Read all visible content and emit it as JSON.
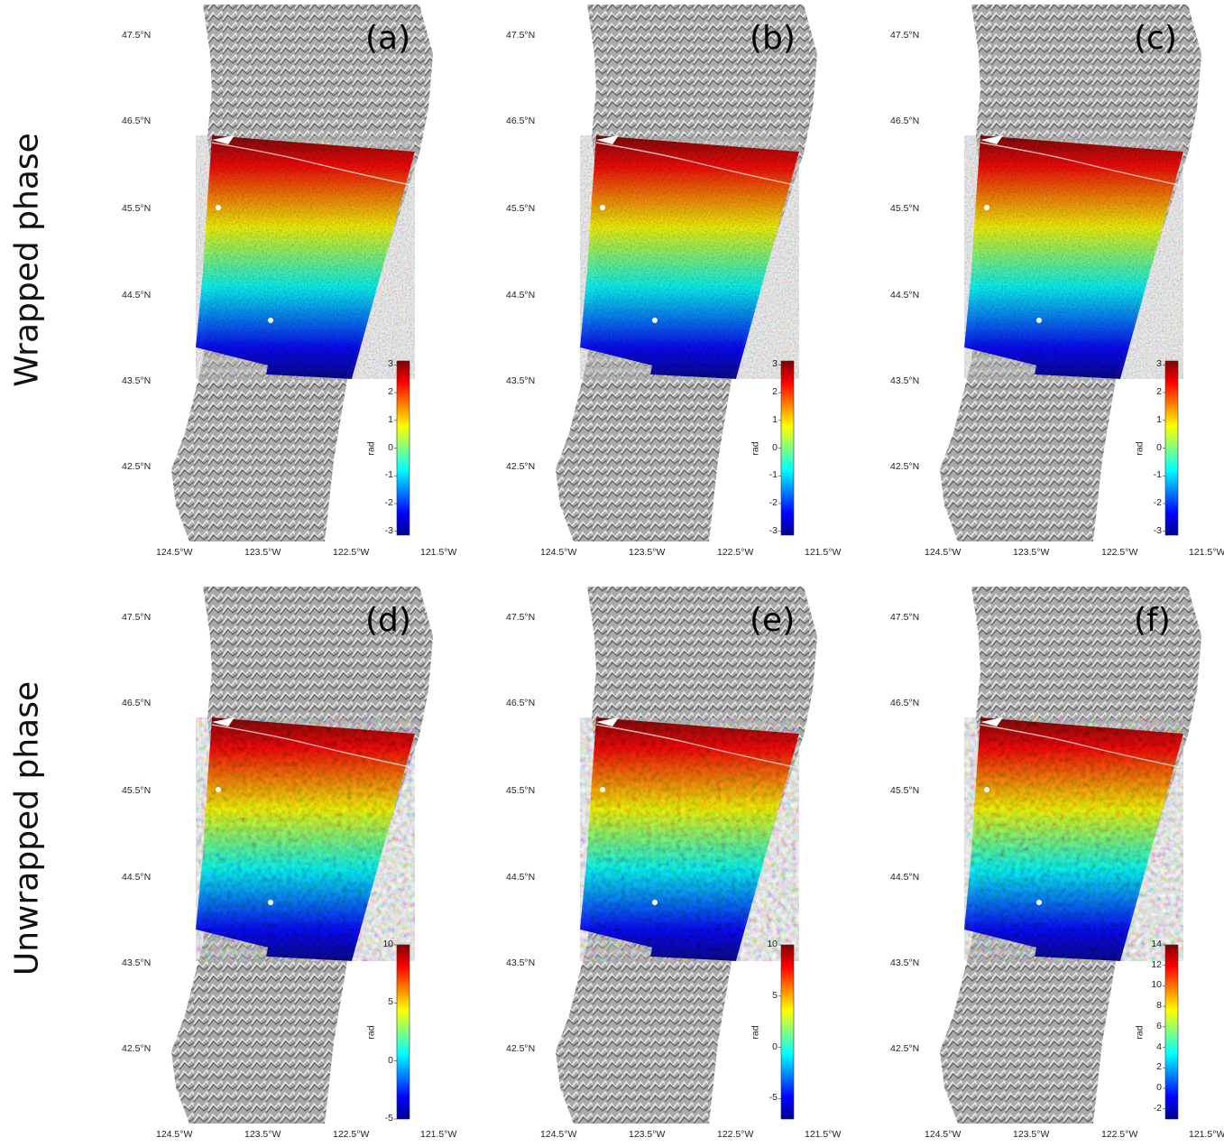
{
  "rows": [
    {
      "label": "Wrapped phase"
    },
    {
      "label": "Unwrapped phase"
    }
  ],
  "lat_labels": [
    "47.5°N",
    "46.5°N",
    "45.5°N",
    "44.5°N",
    "43.5°N",
    "42.5°N"
  ],
  "lon_labels": [
    "124.5°W",
    "123.5°W",
    "122.5°W",
    "121.5°W"
  ],
  "panels": [
    {
      "letter": "(a)",
      "kind": "wrapped",
      "colorbar": {
        "unit": "rad",
        "ticks": [
          "3",
          "2",
          "1",
          "0",
          "-1",
          "-2",
          "-3"
        ],
        "range": [
          -3.14,
          3.14
        ]
      }
    },
    {
      "letter": "(b)",
      "kind": "wrapped",
      "colorbar": {
        "unit": "rad",
        "ticks": [
          "3",
          "2",
          "1",
          "0",
          "-1",
          "-2",
          "-3"
        ],
        "range": [
          -3.14,
          3.14
        ]
      }
    },
    {
      "letter": "(c)",
      "kind": "wrapped",
      "colorbar": {
        "unit": "rad",
        "ticks": [
          "3",
          "2",
          "1",
          "0",
          "-1",
          "-2",
          "-3"
        ],
        "range": [
          -3.14,
          3.14
        ]
      }
    },
    {
      "letter": "(d)",
      "kind": "unwrapped",
      "colorbar": {
        "unit": "rad",
        "ticks": [
          "10",
          "5",
          "0",
          "-5"
        ],
        "range": [
          -5,
          10
        ]
      }
    },
    {
      "letter": "(e)",
      "kind": "unwrapped",
      "colorbar": {
        "unit": "rad",
        "ticks": [
          "10",
          "5",
          "0",
          "-5"
        ],
        "range": [
          -7,
          10
        ]
      }
    },
    {
      "letter": "(f)",
      "kind": "unwrapped",
      "colorbar": {
        "unit": "rad",
        "ticks": [
          "14",
          "12",
          "10",
          "8",
          "6",
          "4",
          "2",
          "0",
          "-2"
        ],
        "range": [
          -3,
          14
        ]
      }
    }
  ],
  "colors": {
    "colormap": "jet",
    "basemap": "grayscale-hillshade",
    "background": "#ffffff"
  }
}
